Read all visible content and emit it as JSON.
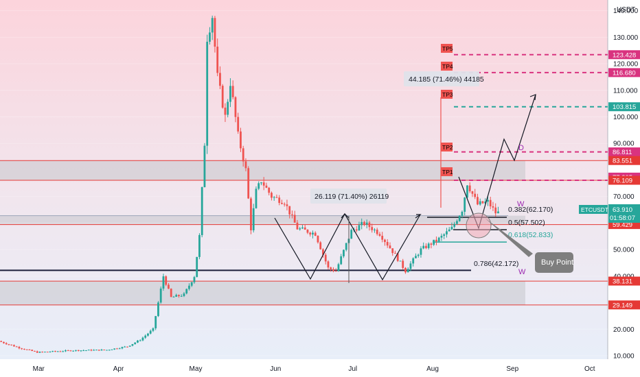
{
  "app": {
    "symbol_label": "ETCUSDT",
    "currency_label": "USDT",
    "countdown": "01:58:07"
  },
  "colors": {
    "up": "#26a69a",
    "down": "#ef5350",
    "red_line": "#e53935",
    "tp_pink": "#d9337f",
    "tp_cyan": "#26a69a",
    "zone_gray": "#c7c7cc",
    "price_green": "#26a69a",
    "callout_gray": "#7e7e7e",
    "pattern_line": "#131722",
    "fib_blue": "#2962ff"
  },
  "chart_data": {
    "type": "candlestick",
    "title": "",
    "xlabel": "",
    "ylabel": "USDT",
    "ylim": [
      10,
      143
    ],
    "date_range": [
      "2021-02-14",
      "2021-10-08"
    ],
    "x_ticks": [
      {
        "label": "Mar",
        "date": "2021-03-01"
      },
      {
        "label": "Apr",
        "date": "2021-04-01"
      },
      {
        "label": "May",
        "date": "2021-05-01"
      },
      {
        "label": "Jun",
        "date": "2021-06-01"
      },
      {
        "label": "Jul",
        "date": "2021-07-01"
      },
      {
        "label": "Aug",
        "date": "2021-08-01"
      },
      {
        "label": "Sep",
        "date": "2021-09-01"
      },
      {
        "label": "Oct",
        "date": "2021-10-01"
      }
    ],
    "y_ticks": [
      {
        "label": "140.000",
        "value": 140
      },
      {
        "label": "130.000",
        "value": 130
      },
      {
        "label": "120.000",
        "value": 120
      },
      {
        "label": "110.000",
        "value": 110
      },
      {
        "label": "100.000",
        "value": 100
      },
      {
        "label": "90.000",
        "value": 90
      },
      {
        "label": "70.000",
        "value": 70
      },
      {
        "label": "60.000",
        "value": 60
      },
      {
        "label": "50.000",
        "value": 50
      },
      {
        "label": "40.000",
        "value": 40
      },
      {
        "label": "20.000",
        "value": 20
      },
      {
        "label": "10.000",
        "value": 10
      }
    ],
    "price_path": [
      {
        "date": "2021-02-14",
        "price": 15.5
      },
      {
        "date": "2021-02-22",
        "price": 13
      },
      {
        "date": "2021-03-01",
        "price": 11.3
      },
      {
        "date": "2021-03-15",
        "price": 12
      },
      {
        "date": "2021-03-28",
        "price": 12.2
      },
      {
        "date": "2021-04-05",
        "price": 13.5
      },
      {
        "date": "2021-04-10",
        "price": 16
      },
      {
        "date": "2021-04-15",
        "price": 20
      },
      {
        "date": "2021-04-17",
        "price": 30
      },
      {
        "date": "2021-04-19",
        "price": 40
      },
      {
        "date": "2021-04-22",
        "price": 32
      },
      {
        "date": "2021-04-27",
        "price": 33
      },
      {
        "date": "2021-05-01",
        "price": 40
      },
      {
        "date": "2021-05-03",
        "price": 55
      },
      {
        "date": "2021-05-05",
        "price": 90
      },
      {
        "date": "2021-05-06",
        "price": 130
      },
      {
        "date": "2021-05-08",
        "price": 138
      },
      {
        "date": "2021-05-10",
        "price": 115
      },
      {
        "date": "2021-05-13",
        "price": 100
      },
      {
        "date": "2021-05-15",
        "price": 113
      },
      {
        "date": "2021-05-18",
        "price": 93
      },
      {
        "date": "2021-05-21",
        "price": 80
      },
      {
        "date": "2021-05-23",
        "price": 58
      },
      {
        "date": "2021-05-25",
        "price": 72
      },
      {
        "date": "2021-05-27",
        "price": 76
      },
      {
        "date": "2021-05-31",
        "price": 70
      },
      {
        "date": "2021-06-05",
        "price": 68
      },
      {
        "date": "2021-06-10",
        "price": 58
      },
      {
        "date": "2021-06-17",
        "price": 56
      },
      {
        "date": "2021-06-22",
        "price": 43
      },
      {
        "date": "2021-06-25",
        "price": 42
      },
      {
        "date": "2021-07-01",
        "price": 57
      },
      {
        "date": "2021-07-06",
        "price": 60
      },
      {
        "date": "2021-07-12",
        "price": 56
      },
      {
        "date": "2021-07-18",
        "price": 48
      },
      {
        "date": "2021-07-22",
        "price": 42
      },
      {
        "date": "2021-07-28",
        "price": 50
      },
      {
        "date": "2021-08-04",
        "price": 54
      },
      {
        "date": "2021-08-09",
        "price": 58
      },
      {
        "date": "2021-08-13",
        "price": 65
      },
      {
        "date": "2021-08-15",
        "price": 75
      },
      {
        "date": "2021-08-19",
        "price": 67
      },
      {
        "date": "2021-08-23",
        "price": 68
      },
      {
        "date": "2021-08-26",
        "price": 63.9
      }
    ],
    "price_levels": [
      {
        "label": "123.428",
        "value": 123.428,
        "color": "#d9337f",
        "tp": "TP5"
      },
      {
        "label": "116.680",
        "value": 116.68,
        "color": "#d9337f",
        "tp": "TP4"
      },
      {
        "label": "103.815",
        "value": 103.815,
        "color": "#26a69a",
        "tp": "TP3"
      },
      {
        "label": "86.811",
        "value": 86.811,
        "color": "#d9337f",
        "tp": "TP2"
      },
      {
        "label": "83.551",
        "value": 83.551,
        "color": "#e53935",
        "tp": ""
      },
      {
        "label": "77.305",
        "value": 77.305,
        "color": "#d9337f",
        "tp": ""
      },
      {
        "label": "76.109",
        "value": 76.109,
        "color": "#e53935",
        "tp": "TP1"
      },
      {
        "label": "62.765",
        "value": 62.765,
        "color": "#131722",
        "tp": ""
      },
      {
        "label": "59.429",
        "value": 59.429,
        "color": "#e53935",
        "tp": ""
      },
      {
        "label": "38.131",
        "value": 38.131,
        "color": "#e53935",
        "tp": ""
      },
      {
        "label": "29.149",
        "value": 29.149,
        "color": "#e53935",
        "tp": ""
      }
    ],
    "current_price": {
      "label": "63.910",
      "value": 63.91
    },
    "zones": [
      {
        "from": 76.109,
        "to": 83.551
      },
      {
        "from": 59.429,
        "to": 62.765
      },
      {
        "from": 29.149,
        "to": 38.131
      }
    ],
    "measurements": [
      {
        "label": "26.119 (71.40%) 26119"
      },
      {
        "label": "44.185 (71.46%) 44185"
      }
    ],
    "fib_levels": [
      {
        "label": "0.382(62.170)",
        "value": 62.17
      },
      {
        "label": "0.5(57.502)",
        "value": 57.502
      },
      {
        "label": "0.618(52.833)",
        "value": 52.833
      },
      {
        "label": "0.786(42.172)",
        "value": 42.172
      }
    ],
    "tp_labels": [
      "TP5",
      "TP4",
      "TP3",
      "TP2",
      "TP1"
    ],
    "pattern_marks": [
      "W",
      "W",
      "D"
    ],
    "callout": "Buy Point"
  }
}
